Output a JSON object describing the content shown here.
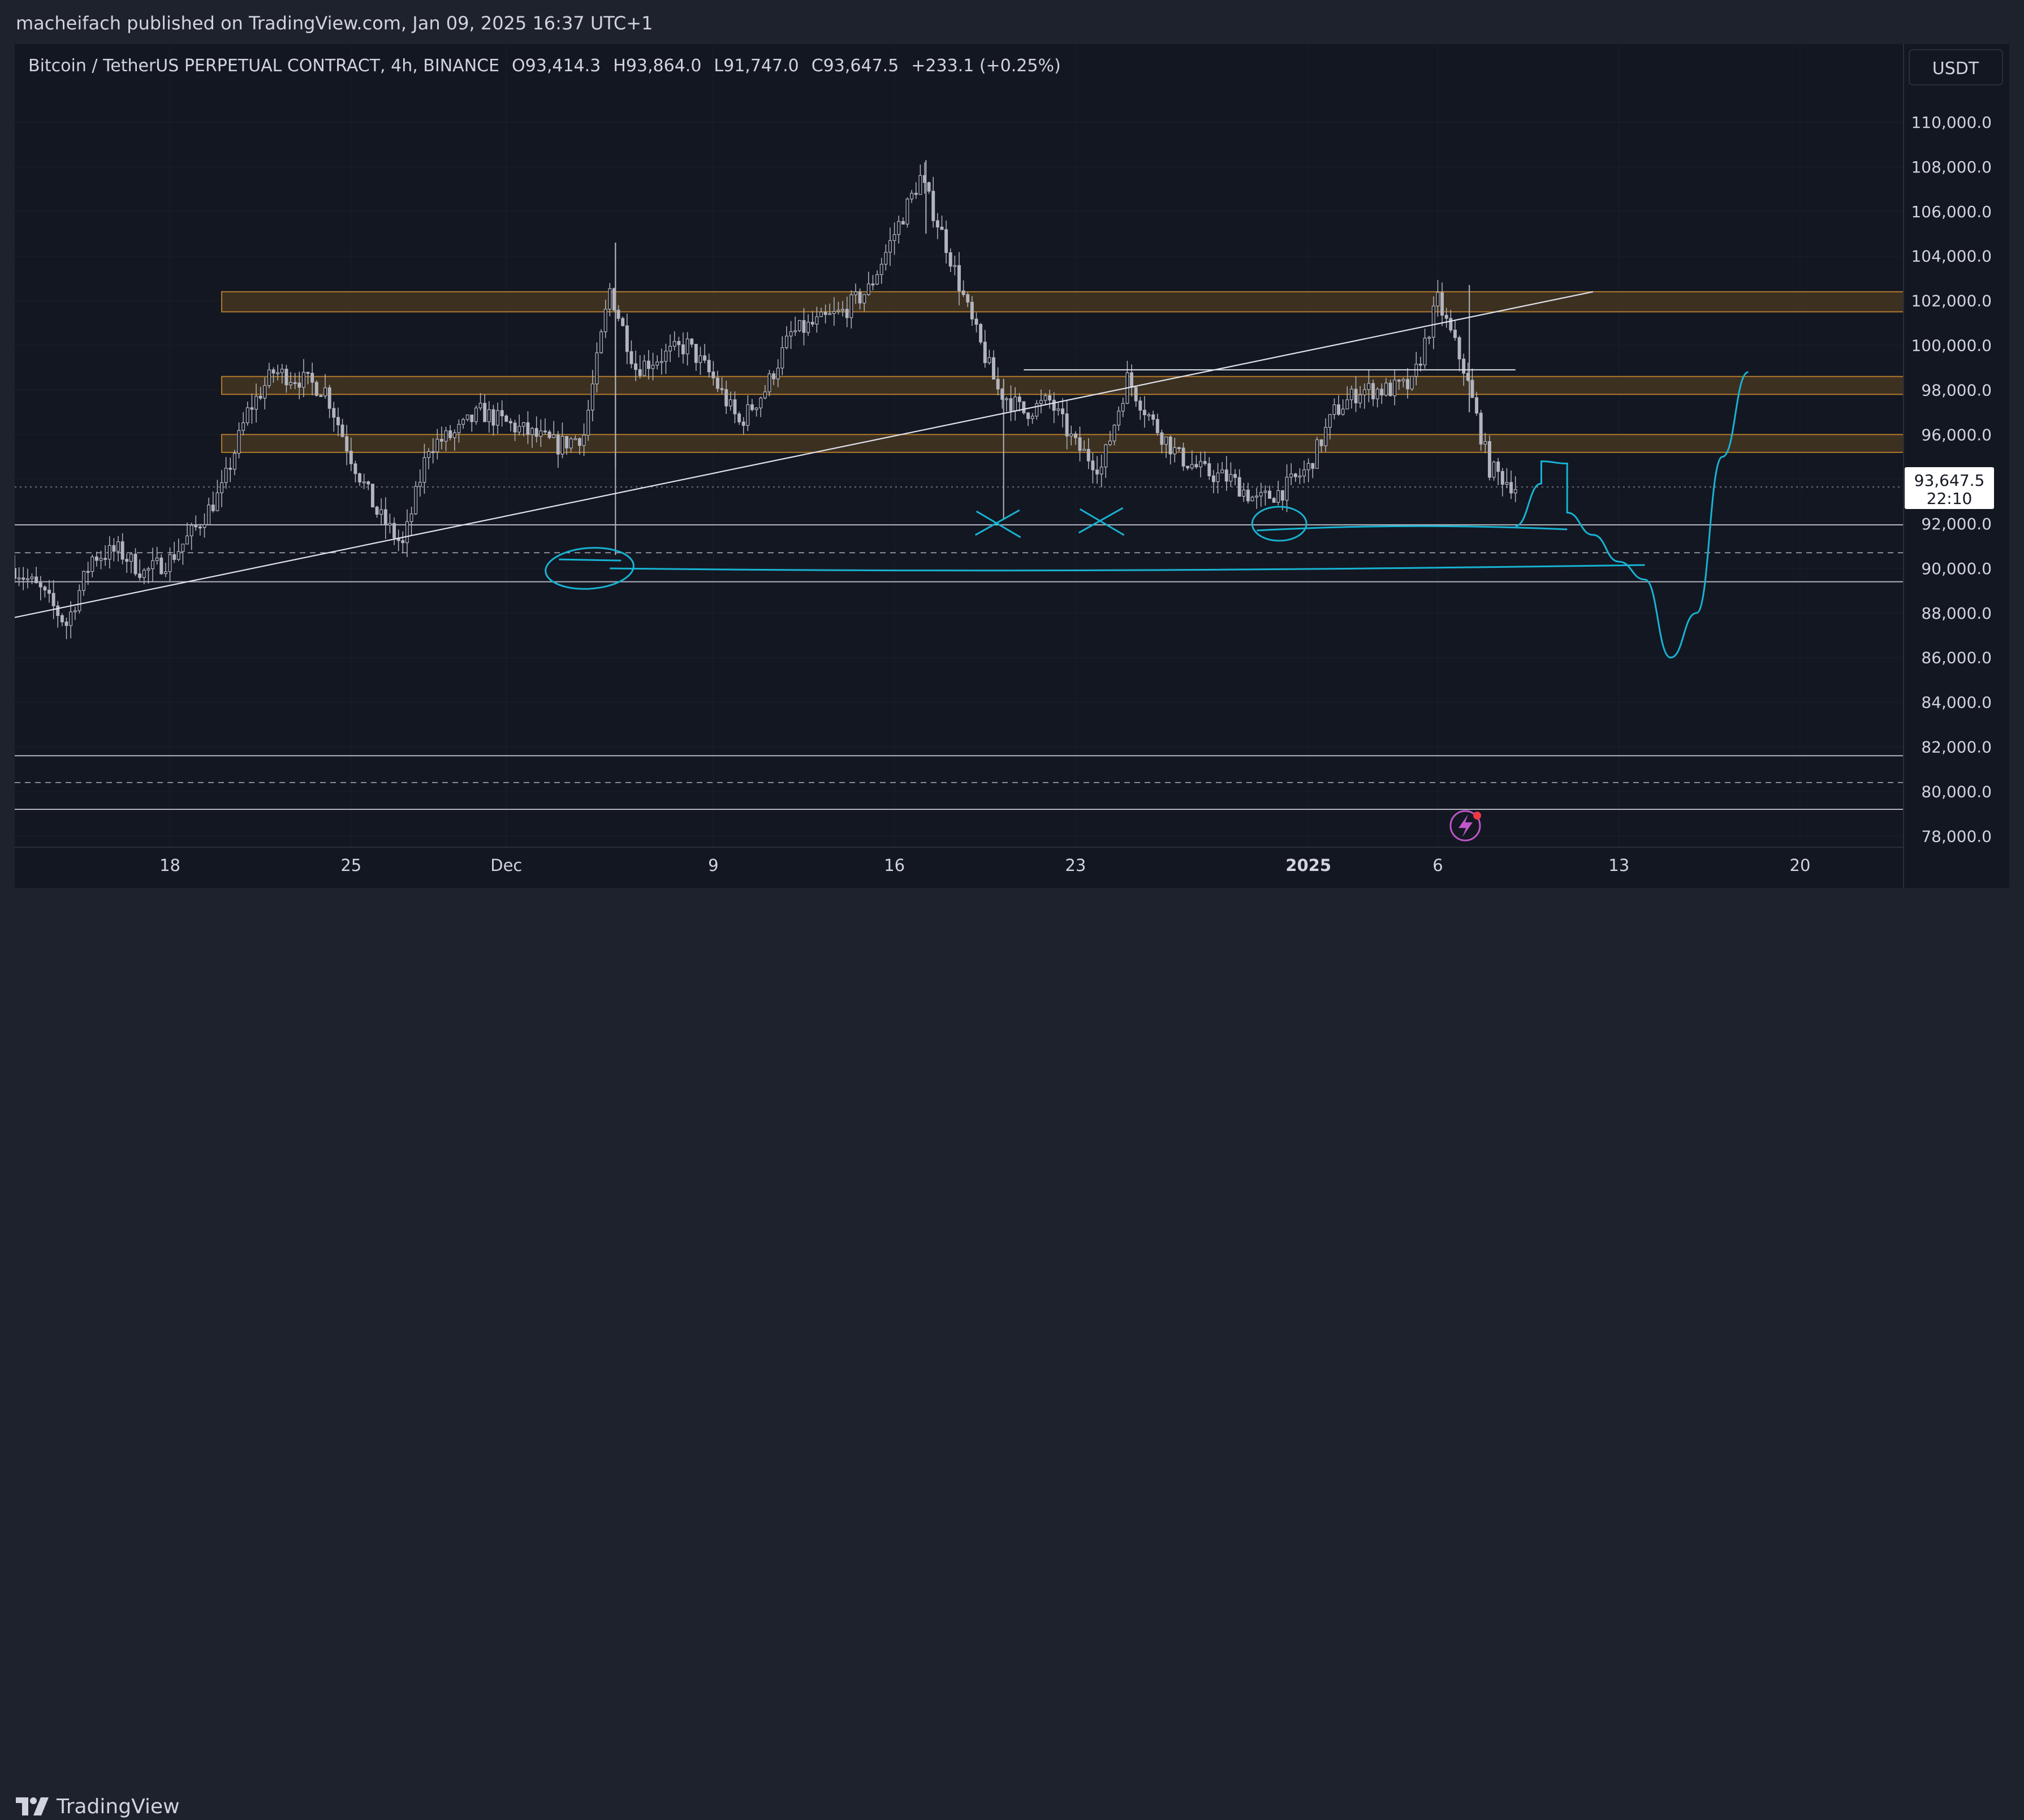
{
  "publisher": "macheifach published on TradingView.com, Jan 09, 2025 16:37 UTC+1",
  "branding": "TradingView",
  "colors": {
    "background": "#131722",
    "frame": "#1e222d",
    "text": "#d1d4dc",
    "grid": "#2a2e39",
    "candle": "#b2b5be",
    "zone_fill": "#4b3a22",
    "zone_border": "#b07a2c",
    "drawing_cyan": "#17b3d2",
    "trendline": "#e0e3eb",
    "flash_icon": "#c156c9"
  },
  "legend": {
    "symbol": "Bitcoin / TetherUS PERPETUAL CONTRACT, 4h, BINANCE",
    "open": "O93,414.3",
    "high": "H93,864.0",
    "low": "L91,747.0",
    "close": "C93,647.5",
    "change": "+233.1 (+0.25%)"
  },
  "price_badge": {
    "price": "93,647.5",
    "countdown": "22:10"
  },
  "currency_button": "USDT",
  "icons": [
    "lightning-icon",
    "tradingview-logo-icon"
  ],
  "chart_data": {
    "type": "candlestick",
    "title": "Bitcoin / TetherUS PERPETUAL CONTRACT, 4h, BINANCE",
    "ylabel": "USDT",
    "ylim": [
      77500,
      113500
    ],
    "xlim": [
      "2024-11-12",
      "2025-01-24"
    ],
    "y_ticks": [
      "110,000.0",
      "108,000.0",
      "106,000.0",
      "104,000.0",
      "102,000.0",
      "100,000.0",
      "98,000.0",
      "96,000.0",
      "94,000.0",
      "92,000.0",
      "90,000.0",
      "88,000.0",
      "86,000.0",
      "84,000.0",
      "82,000.0",
      "80,000.0",
      "78,000.0"
    ],
    "x_ticks": [
      {
        "label": "18",
        "date": "2024-11-18"
      },
      {
        "label": "25",
        "date": "2024-11-25"
      },
      {
        "label": "Dec",
        "date": "2024-12-01"
      },
      {
        "label": "9",
        "date": "2024-12-09"
      },
      {
        "label": "16",
        "date": "2024-12-16"
      },
      {
        "label": "23",
        "date": "2024-12-23"
      },
      {
        "label": "2025",
        "date": "2025-01-01"
      },
      {
        "label": "6",
        "date": "2025-01-06"
      },
      {
        "label": "13",
        "date": "2025-01-13"
      },
      {
        "label": "20",
        "date": "2025-01-20"
      }
    ],
    "path": [
      [
        "2024-11-12",
        90000
      ],
      [
        "2024-11-13",
        89000
      ],
      [
        "2024-11-14",
        87500
      ],
      [
        "2024-11-15",
        90500
      ],
      [
        "2024-11-16",
        90800
      ],
      [
        "2024-11-17",
        89800
      ],
      [
        "2024-11-18",
        90400
      ],
      [
        "2024-11-19",
        91800
      ],
      [
        "2024-11-20",
        93500
      ],
      [
        "2024-11-21",
        97000
      ],
      [
        "2024-11-22",
        98800
      ],
      [
        "2024-11-23",
        98500
      ],
      [
        "2024-11-24",
        98000
      ],
      [
        "2024-11-25",
        95000
      ],
      [
        "2024-11-26",
        92500
      ],
      [
        "2024-11-27",
        91000
      ],
      [
        "2024-11-28",
        95500
      ],
      [
        "2024-11-29",
        96000
      ],
      [
        "2024-11-30",
        97000
      ],
      [
        "2024-12-01",
        96500
      ],
      [
        "2024-12-02",
        96000
      ],
      [
        "2024-12-03",
        95500
      ],
      [
        "2024-12-04",
        96000
      ],
      [
        "2024-12-05",
        102500
      ],
      [
        "2024-12-06",
        99000
      ],
      [
        "2024-12-07",
        99500
      ],
      [
        "2024-12-08",
        100000
      ],
      [
        "2024-12-09",
        98500
      ],
      [
        "2024-12-10",
        96500
      ],
      [
        "2024-12-11",
        98000
      ],
      [
        "2024-12-12",
        100500
      ],
      [
        "2024-12-13",
        101000
      ],
      [
        "2024-12-14",
        101500
      ],
      [
        "2024-12-15",
        102500
      ],
      [
        "2024-12-16",
        105000
      ],
      [
        "2024-12-17",
        107500
      ],
      [
        "2024-12-18",
        104500
      ],
      [
        "2024-12-19",
        101000
      ],
      [
        "2024-12-20",
        98000
      ],
      [
        "2024-12-21",
        97000
      ],
      [
        "2024-12-22",
        97500
      ],
      [
        "2024-12-23",
        95500
      ],
      [
        "2024-12-24",
        94500
      ],
      [
        "2024-12-25",
        98500
      ],
      [
        "2024-12-26",
        96500
      ],
      [
        "2024-12-27",
        95000
      ],
      [
        "2024-12-28",
        94300
      ],
      [
        "2024-12-29",
        94000
      ],
      [
        "2024-12-30",
        93000
      ],
      [
        "2024-12-31",
        93500
      ],
      [
        "2025-01-01",
        94500
      ],
      [
        "2025-01-02",
        97000
      ],
      [
        "2025-01-03",
        98000
      ],
      [
        "2025-01-04",
        98000
      ],
      [
        "2025-01-05",
        98200
      ],
      [
        "2025-01-06",
        102000
      ],
      [
        "2025-01-07",
        99000
      ],
      [
        "2025-01-08",
        94500
      ],
      [
        "2025-01-09",
        93650
      ]
    ],
    "wicks": [
      {
        "date": "2024-12-05",
        "high": 104600,
        "low": 94500
      },
      {
        "date": "2024-12-05",
        "high": 104600,
        "low": 90600
      },
      {
        "date": "2024-12-17",
        "high": 108300,
        "low": 105000
      },
      {
        "date": "2024-12-20",
        "high": 98500,
        "low": 92200
      },
      {
        "date": "2025-01-07",
        "high": 102700,
        "low": 97000
      }
    ],
    "zones": [
      {
        "label": "zone-1",
        "from": 101500,
        "to": 102400,
        "start": "2024-11-20"
      },
      {
        "label": "zone-2",
        "from": 97800,
        "to": 98600,
        "start": "2024-11-20"
      },
      {
        "label": "zone-3",
        "from": 95200,
        "to": 96000,
        "start": "2024-11-20"
      }
    ],
    "horizontal_lines": [
      {
        "price": 91950,
        "style": "solid"
      },
      {
        "price": 90700,
        "style": "dashed"
      },
      {
        "price": 89400,
        "style": "solid"
      },
      {
        "price": 93650,
        "style": "dotted"
      },
      {
        "price": 81600,
        "style": "solid"
      },
      {
        "price": 80400,
        "style": "dashed"
      },
      {
        "price": 79200,
        "style": "solid"
      }
    ],
    "trendline": {
      "from": [
        "2024-11-12",
        87800
      ],
      "to": [
        "2025-01-12",
        102400
      ]
    },
    "top_line": {
      "from": [
        "2024-12-21",
        98900
      ],
      "to": [
        "2025-01-09",
        98900
      ]
    },
    "projection": [
      [
        "2025-01-09",
        91900
      ],
      [
        "2025-01-10",
        93800
      ],
      [
        "2025-01-10",
        94800
      ],
      [
        "2025-01-11",
        94700
      ],
      [
        "2025-01-11",
        92500
      ],
      [
        "2025-01-12",
        91500
      ],
      [
        "2025-01-13",
        90300
      ],
      [
        "2025-01-14",
        89500
      ],
      [
        "2025-01-15",
        86000
      ],
      [
        "2025-01-16",
        88000
      ],
      [
        "2025-01-17",
        95000
      ],
      [
        "2025-01-18",
        98800
      ]
    ]
  }
}
